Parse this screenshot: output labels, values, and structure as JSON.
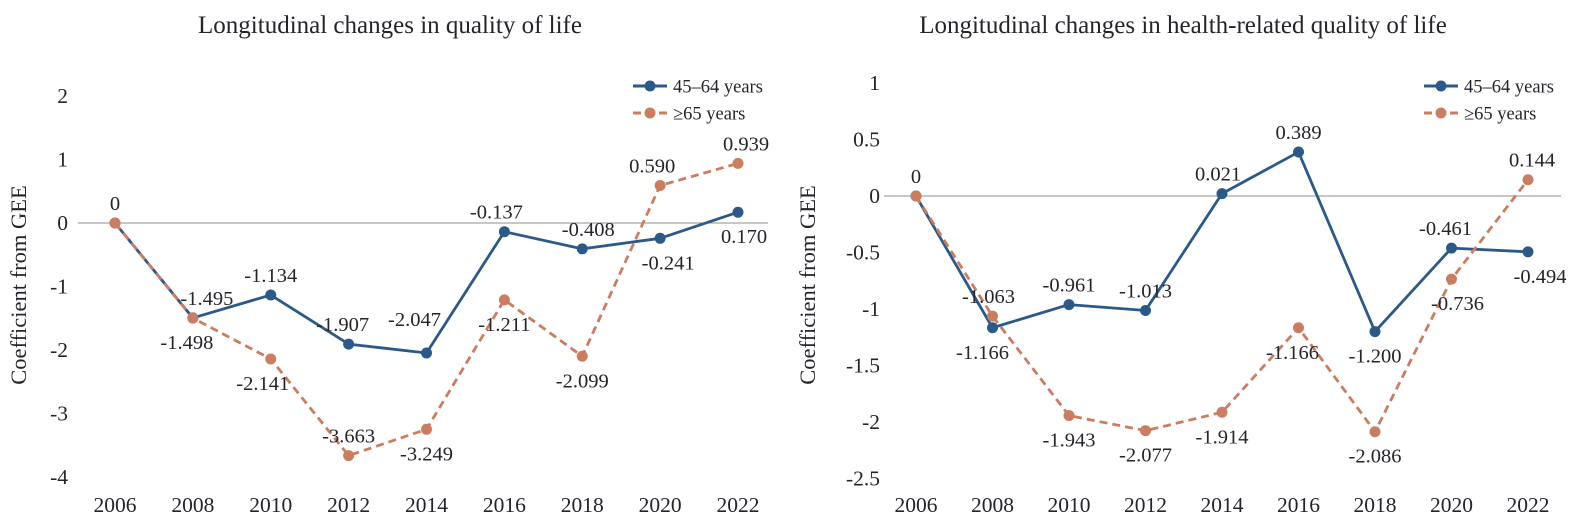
{
  "figure": {
    "background": "#ffffff",
    "zero_line_color": "#8f8f8f",
    "text_color": "#24242b"
  },
  "chart_data": [
    {
      "type": "line",
      "title": "Longitudinal changes in quality of life",
      "ylabel": "Coefficient from GEE",
      "xlabel": "",
      "categories": [
        "2006",
        "2008",
        "2010",
        "2012",
        "2014",
        "2016",
        "2018",
        "2020",
        "2022"
      ],
      "y_ticks": [
        "2",
        "1",
        "0",
        "-1",
        "-2",
        "-3",
        "-4"
      ],
      "ylim": [
        -4,
        2
      ],
      "grid": false,
      "zero_line": true,
      "legend_position": "top-right",
      "series": [
        {
          "name": "45–64 years",
          "color": "#2b5a88",
          "style": "solid",
          "values": [
            0,
            -1.495,
            -1.134,
            -1.907,
            -2.047,
            -0.137,
            -0.408,
            -0.241,
            0.17
          ],
          "labels": [
            "",
            "-1.495",
            "-1.134",
            "-1.907",
            "-2.047",
            "-0.137",
            "-0.408",
            "-0.241",
            "0.170"
          ],
          "label_side": [
            "",
            "above",
            "above",
            "above",
            "above",
            "above",
            "above",
            "below",
            "below"
          ],
          "label_dx": [
            0,
            14,
            0,
            -6,
            -12,
            -8,
            6,
            8,
            6
          ],
          "label_dy": [
            0,
            0,
            0,
            0,
            -14,
            0,
            0,
            0,
            0
          ]
        },
        {
          "name": "≥65 years",
          "color": "#cb7d61",
          "style": "dashed",
          "values": [
            0,
            -1.498,
            -2.141,
            -3.663,
            -3.249,
            -1.211,
            -2.099,
            0.59,
            0.939
          ],
          "labels": [
            "0",
            "-1.498",
            "-2.141",
            "-3.663",
            "-3.249",
            "-1.211",
            "-2.099",
            "0.590",
            "0.939"
          ],
          "label_side": [
            "above",
            "below",
            "below",
            "above",
            "below",
            "below",
            "below",
            "above",
            "above"
          ],
          "label_dx": [
            0,
            -6,
            -8,
            0,
            0,
            0,
            0,
            -8,
            8
          ],
          "label_dy": [
            0,
            0,
            0,
            0,
            0,
            0,
            0,
            0,
            0
          ]
        }
      ]
    },
    {
      "type": "line",
      "title": "Longitudinal changes in health-related quality of life",
      "ylabel": "Coefficient from GEE",
      "xlabel": "",
      "categories": [
        "2006",
        "2008",
        "2010",
        "2012",
        "2014",
        "2016",
        "2018",
        "2020",
        "2022"
      ],
      "y_ticks": [
        "1",
        "0.5",
        "0",
        "-0.5",
        "-1",
        "-1.5",
        "-2",
        "-2.5"
      ],
      "ylim": [
        -2.5,
        1
      ],
      "grid": false,
      "zero_line": true,
      "legend_position": "top-right",
      "series": [
        {
          "name": "45–64 years",
          "color": "#2b5a88",
          "style": "solid",
          "values": [
            0,
            -1.166,
            -0.961,
            -1.013,
            0.021,
            0.389,
            -1.2,
            -0.461,
            -0.494
          ],
          "labels": [
            "",
            "-1.166",
            "-0.961",
            "-1.013",
            "0.021",
            "0.389",
            "-1.200",
            "-0.461",
            "-0.494"
          ],
          "label_side": [
            "",
            "below",
            "above",
            "above",
            "above",
            "above",
            "below",
            "above",
            "below"
          ],
          "label_dx": [
            0,
            -10,
            0,
            0,
            -4,
            0,
            0,
            -6,
            12
          ],
          "label_dy": [
            0,
            0,
            0,
            0,
            0,
            0,
            0,
            0,
            0
          ]
        },
        {
          "name": "≥65 years",
          "color": "#cb7d61",
          "style": "dashed",
          "values": [
            0,
            -1.063,
            -1.943,
            -2.077,
            -1.914,
            -1.166,
            -2.086,
            -0.736,
            0.144
          ],
          "labels": [
            "0",
            "-1.063",
            "-1.943",
            "-2.077",
            "-1.914",
            "-1.166",
            "-2.086",
            "-0.736",
            "0.144"
          ],
          "label_side": [
            "above",
            "above",
            "below",
            "below",
            "below",
            "below",
            "below",
            "below",
            "above"
          ],
          "label_dx": [
            0,
            -4,
            0,
            0,
            0,
            -6,
            0,
            6,
            4
          ],
          "label_dy": [
            0,
            0,
            0,
            0,
            0,
            0,
            0,
            0,
            0
          ]
        }
      ]
    }
  ]
}
